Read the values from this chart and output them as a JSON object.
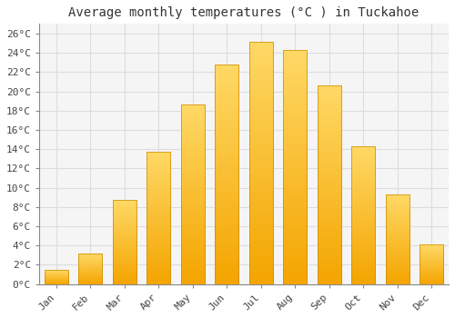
{
  "title": "Average monthly temperatures (°C ) in Tuckahoe",
  "months": [
    "Jan",
    "Feb",
    "Mar",
    "Apr",
    "May",
    "Jun",
    "Jul",
    "Aug",
    "Sep",
    "Oct",
    "Nov",
    "Dec"
  ],
  "values": [
    1.5,
    3.2,
    8.7,
    13.7,
    18.6,
    22.8,
    25.1,
    24.3,
    20.6,
    14.3,
    9.3,
    4.1
  ],
  "bar_color_top": "#FFD966",
  "bar_color_bottom": "#F4A500",
  "ylim": [
    0,
    27
  ],
  "ytick_values": [
    0,
    2,
    4,
    6,
    8,
    10,
    12,
    14,
    16,
    18,
    20,
    22,
    24,
    26
  ],
  "background_color": "#FFFFFF",
  "plot_bg_color": "#F5F5F5",
  "grid_color": "#DDDDDD",
  "title_fontsize": 10,
  "tick_fontsize": 8,
  "font_family": "monospace"
}
